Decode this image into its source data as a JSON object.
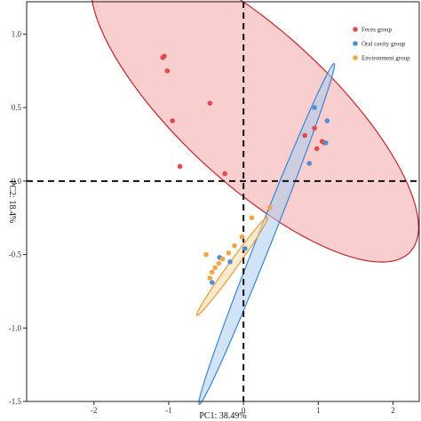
{
  "chart_data": {
    "type": "scatter",
    "xlabel": "PC1: 38.49%",
    "ylabel": "PC2: 18.4%",
    "xlim": [
      -2.9,
      2.35
    ],
    "ylim": [
      -1.5,
      1.22
    ],
    "xticks": [
      -2,
      -1,
      0,
      1,
      2
    ],
    "yticks": [
      -1.5,
      -1.0,
      -0.5,
      0.0,
      0.5,
      1.0
    ],
    "ytick_labels": [
      "-1.5",
      "-1.0",
      "-0.5",
      "0.0",
      "0.5",
      "1.0"
    ],
    "xtick_labels": [
      "-2",
      "-1",
      "0",
      "1",
      "2"
    ],
    "reference_lines": {
      "x": 0,
      "y": 0,
      "style": "dashed"
    },
    "legend_position": "top-right",
    "grid": false,
    "series": [
      {
        "name": "Feces group",
        "color": "#e04b4f",
        "fill": "#f4a6a8",
        "edge": "#c0272d",
        "ellipse": {
          "cx": 0.15,
          "cy": 0.5,
          "rx": 2.35,
          "ry": 0.62,
          "angle_deg": -22
        },
        "points": [
          {
            "x": -1.08,
            "y": 0.84
          },
          {
            "x": -1.06,
            "y": 0.85
          },
          {
            "x": -1.02,
            "y": 0.75
          },
          {
            "x": -0.45,
            "y": 0.53
          },
          {
            "x": -0.95,
            "y": 0.41
          },
          {
            "x": -0.85,
            "y": 0.1
          },
          {
            "x": -0.25,
            "y": 0.05
          },
          {
            "x": 0.82,
            "y": 0.31
          },
          {
            "x": 1.05,
            "y": 0.27
          },
          {
            "x": 0.98,
            "y": 0.22
          },
          {
            "x": 1.08,
            "y": 0.26
          },
          {
            "x": 0.95,
            "y": 0.36
          }
        ]
      },
      {
        "name": "Oral cavity group",
        "color": "#4f8fd6",
        "fill": "#a9ccf1",
        "edge": "#3a86d0",
        "ellipse": {
          "cx": 0.31,
          "cy": -0.36,
          "rx": 1.47,
          "ry": 0.085,
          "angle_deg": 52
        },
        "points": [
          {
            "x": 0.95,
            "y": 0.5
          },
          {
            "x": 1.12,
            "y": 0.41
          },
          {
            "x": 1.1,
            "y": 0.26
          },
          {
            "x": 0.88,
            "y": 0.12
          },
          {
            "x": 0.02,
            "y": -0.46
          },
          {
            "x": -0.18,
            "y": -0.55
          },
          {
            "x": -0.32,
            "y": -0.52
          },
          {
            "x": -0.42,
            "y": -0.69
          }
        ]
      },
      {
        "name": "Environment group",
        "color": "#f0a645",
        "fill": "#f9d9a8",
        "edge": "#e89a35",
        "ellipse": {
          "cx": -0.15,
          "cy": -0.58,
          "rx": 0.58,
          "ry": 0.04,
          "angle_deg": 35
        },
        "points": [
          {
            "x": 0.35,
            "y": -0.18
          },
          {
            "x": 0.11,
            "y": -0.25
          },
          {
            "x": -0.02,
            "y": -0.38
          },
          {
            "x": -0.12,
            "y": -0.44
          },
          {
            "x": -0.2,
            "y": -0.49
          },
          {
            "x": -0.28,
            "y": -0.53
          },
          {
            "x": -0.33,
            "y": -0.56
          },
          {
            "x": -0.38,
            "y": -0.59
          },
          {
            "x": -0.42,
            "y": -0.62
          },
          {
            "x": -0.45,
            "y": -0.66
          },
          {
            "x": -0.5,
            "y": -0.5
          }
        ]
      }
    ]
  }
}
